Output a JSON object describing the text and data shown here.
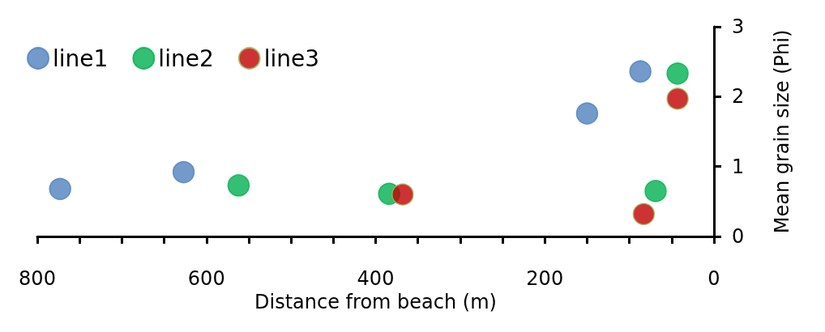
{
  "chart_data": {
    "type": "scatter",
    "xlabel": "Distance from beach (m)",
    "ylabel": "Mean grain size (Phi)",
    "xlim": [
      800,
      0
    ],
    "xticks": [
      800,
      {
        "value": 750,
        "label": null
      },
      {
        "value": 700,
        "label": null
      },
      {
        "value": 650,
        "label": null
      },
      600,
      {
        "value": 550,
        "label": null
      },
      {
        "value": 500,
        "label": null
      },
      {
        "value": 450,
        "label": null
      },
      400,
      {
        "value": 350,
        "label": null
      },
      {
        "value": 300,
        "label": null
      },
      {
        "value": 250,
        "label": null
      },
      200,
      {
        "value": 150,
        "label": null
      },
      {
        "value": 100,
        "label": null
      },
      {
        "value": 50,
        "label": null
      },
      0
    ],
    "ylim": [
      0,
      3
    ],
    "yticks": [
      0,
      1,
      2,
      3
    ],
    "grid": false,
    "legend": "top left",
    "marker": "circle",
    "series": [
      {
        "name": "line1",
        "color": "#4f81bd",
        "x": [
          773,
          627,
          150,
          87
        ],
        "values": [
          0.68,
          0.92,
          1.76,
          2.36
        ]
      },
      {
        "name": "line2",
        "color": "#00b050",
        "x": [
          562,
          384,
          69,
          43
        ],
        "values": [
          0.73,
          0.61,
          0.65,
          2.33
        ]
      },
      {
        "name": "line3",
        "color": "#c00000",
        "x": [
          368,
          83,
          43
        ],
        "values": [
          0.6,
          0.32,
          1.97
        ]
      }
    ]
  }
}
